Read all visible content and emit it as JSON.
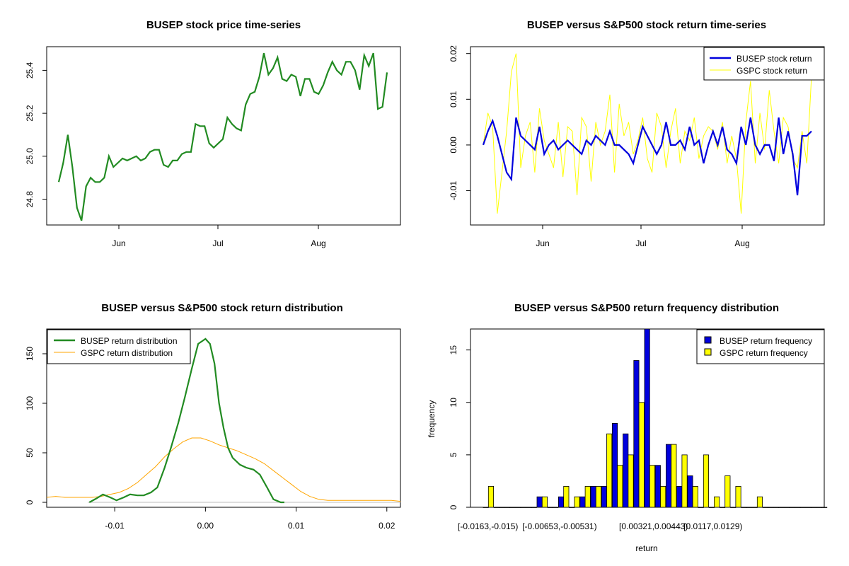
{
  "colors": {
    "busep": "#0000dd",
    "gspc": "#ffff00",
    "price": "#228b22",
    "density_busep": "#228b22",
    "density_gspc": "#ffa500"
  },
  "chart_data": [
    {
      "id": "price",
      "type": "line",
      "title": "BUSEP stock price time-series",
      "xlabel": "",
      "ylabel": "",
      "x_tick_labels": [
        "Jun",
        "Jul",
        "Aug"
      ],
      "y_tick_labels": [
        "24.8",
        "25.0",
        "25.2",
        "25.4"
      ],
      "ylim": [
        24.68,
        25.51
      ],
      "series": [
        {
          "x": [
            "May 13",
            "May 14",
            "May 15",
            "May 17",
            "May 20",
            "May 21",
            "May 22",
            "May 23",
            "May 24",
            "May 27",
            "May 28",
            "May 29",
            "May 30",
            "May 31",
            "Jun 3",
            "Jun 4",
            "Jun 5",
            "Jun 6",
            "Jun 7",
            "Jun 10",
            "Jun 11",
            "Jun 12",
            "Jun 13",
            "Jun 14",
            "Jun 17",
            "Jun 18",
            "Jun 19",
            "Jun 20",
            "Jun 21",
            "Jun 24",
            "Jun 25",
            "Jun 26",
            "Jun 27",
            "Jun 28",
            "Jul 1",
            "Jul 2",
            "Jul 3",
            "Jul 5",
            "Jul 8",
            "Jul 9",
            "Jul 10",
            "Jul 11",
            "Jul 12",
            "Jul 15",
            "Jul 16",
            "Jul 17",
            "Jul 18",
            "Jul 19",
            "Jul 22",
            "Jul 23",
            "Jul 24",
            "Jul 25",
            "Jul 26",
            "Jul 29",
            "Jul 30",
            "Jul 31",
            "Aug 1",
            "Aug 2",
            "Aug 5",
            "Aug 6",
            "Aug 7",
            "Aug 8",
            "Aug 9",
            "Aug 12",
            "Aug 13",
            "Aug 14",
            "Aug 15",
            "Aug 16",
            "Aug 19",
            "Aug 20",
            "Aug 21",
            "Aug 22",
            "Aug 23"
          ],
          "values": [
            24.88,
            24.97,
            25.1,
            24.95,
            24.76,
            24.7,
            24.86,
            24.9,
            24.88,
            24.88,
            24.9,
            25.0,
            24.95,
            24.97,
            24.99,
            24.98,
            24.99,
            25.0,
            24.98,
            24.99,
            25.02,
            25.03,
            25.03,
            24.96,
            24.95,
            24.98,
            24.98,
            25.01,
            25.02,
            25.02,
            25.15,
            25.14,
            25.14,
            25.06,
            25.04,
            25.06,
            25.08,
            25.18,
            25.15,
            25.13,
            25.12,
            25.24,
            25.29,
            25.3,
            25.37,
            25.48,
            25.38,
            25.41,
            25.46,
            25.36,
            25.35,
            25.38,
            25.37,
            25.28,
            25.36,
            25.36,
            25.3,
            25.29,
            25.33,
            25.39,
            25.44,
            25.4,
            25.38,
            25.44,
            25.44,
            25.4,
            25.31,
            25.47,
            25.42,
            25.48,
            25.22,
            25.23,
            25.39
          ]
        }
      ]
    },
    {
      "id": "returns",
      "type": "line",
      "title": "BUSEP versus S&P500 stock return time-series",
      "x_tick_labels": [
        "Jun",
        "Jul",
        "Aug"
      ],
      "y_tick_labels": [
        "-0.01",
        "0.00",
        "0.01",
        "0.02"
      ],
      "ylim": [
        -0.0175,
        0.0215
      ],
      "legend_position": "top-right",
      "series": [
        {
          "name": "BUSEP stock return",
          "values": [
            0.0,
            0.003,
            0.0053,
            0.002,
            -0.002,
            -0.006,
            -0.0075,
            0.006,
            0.002,
            0.001,
            0.0,
            -0.001,
            0.004,
            -0.002,
            0.0,
            0.001,
            -0.001,
            0.0,
            0.001,
            0.0,
            -0.001,
            -0.002,
            0.001,
            0.0,
            0.002,
            0.001,
            0.0,
            0.003,
            0.0,
            0.0,
            -0.001,
            -0.002,
            -0.004,
            0.0,
            0.004,
            0.002,
            0.0,
            -0.002,
            0.0,
            0.005,
            0.0,
            0.0,
            0.001,
            -0.001,
            0.004,
            0.0,
            0.001,
            -0.004,
            0.0,
            0.003,
            0.0,
            0.004,
            -0.001,
            -0.002,
            -0.004,
            0.004,
            0.0,
            0.006,
            0.0,
            -0.002,
            0.0,
            0.0,
            -0.0035,
            0.006,
            -0.002,
            0.003,
            -0.002,
            -0.011,
            0.002,
            0.002,
            0.003
          ]
        },
        {
          "name": "GSPC stock return",
          "values": [
            0.0,
            0.007,
            0.004,
            -0.015,
            -0.006,
            0.003,
            0.016,
            0.02,
            -0.005,
            0.002,
            0.005,
            -0.006,
            0.008,
            0.001,
            -0.002,
            -0.005,
            0.005,
            -0.007,
            0.004,
            0.003,
            -0.011,
            0.006,
            0.004,
            -0.008,
            0.005,
            0.0,
            0.003,
            0.011,
            -0.006,
            0.009,
            0.002,
            0.005,
            -0.002,
            0.001,
            0.006,
            -0.003,
            -0.006,
            0.007,
            0.004,
            -0.005,
            0.003,
            0.008,
            -0.004,
            0.003,
            0.001,
            0.006,
            -0.003,
            0.002,
            0.004,
            0.003,
            -0.001,
            0.005,
            -0.004,
            0.002,
            -0.003,
            -0.015,
            0.005,
            0.014,
            -0.004,
            0.007,
            -0.001,
            0.012,
            0.003,
            -0.004,
            0.006,
            0.004,
            -0.003,
            -0.005,
            0.003,
            -0.004,
            0.015
          ]
        }
      ]
    },
    {
      "id": "density",
      "type": "line",
      "title": "BUSEP versus S&P500 stock return distribution",
      "x_tick_labels": [
        "-0.01",
        "0.00",
        "0.01",
        "0.02"
      ],
      "y_tick_labels": [
        "0",
        "50",
        "100",
        "150"
      ],
      "xlim": [
        -0.0175,
        0.0215
      ],
      "ylim": [
        -5,
        175
      ],
      "legend_position": "top-left",
      "series": [
        {
          "name": "BUSEP return distribution",
          "x": [
            -0.0128,
            -0.012,
            -0.0113,
            -0.0105,
            -0.0098,
            -0.009,
            -0.0083,
            -0.0075,
            -0.0068,
            -0.006,
            -0.0053,
            -0.0045,
            -0.0038,
            -0.003,
            -0.0023,
            -0.0015,
            -0.0008,
            0.0,
            0.0005,
            0.001,
            0.0015,
            0.002,
            0.0025,
            0.003,
            0.0038,
            0.0045,
            0.0053,
            0.006,
            0.0068,
            0.0075,
            0.0083,
            0.0087
          ],
          "values": [
            0,
            4,
            8,
            5,
            2,
            5,
            8,
            7,
            7,
            10,
            15,
            35,
            55,
            80,
            105,
            135,
            160,
            165,
            160,
            140,
            100,
            75,
            55,
            45,
            38,
            35,
            33,
            28,
            15,
            3,
            0,
            0
          ]
        },
        {
          "name": "GSPC return distribution",
          "x": [
            -0.0175,
            -0.0165,
            -0.0155,
            -0.0145,
            -0.0135,
            -0.0125,
            -0.0115,
            -0.0105,
            -0.0095,
            -0.0085,
            -0.0075,
            -0.0065,
            -0.0055,
            -0.0045,
            -0.0035,
            -0.0025,
            -0.0015,
            -0.0005,
            0.0005,
            0.0015,
            0.0025,
            0.0035,
            0.0045,
            0.0055,
            0.0065,
            0.0075,
            0.0085,
            0.0095,
            0.0105,
            0.0115,
            0.0125,
            0.0135,
            0.0145,
            0.0155,
            0.0165,
            0.0175,
            0.0185,
            0.0195,
            0.0205,
            0.0215
          ],
          "values": [
            5,
            6,
            5,
            5,
            5,
            5,
            6,
            8,
            10,
            14,
            20,
            28,
            36,
            46,
            54,
            61,
            65,
            65,
            62,
            58,
            55,
            52,
            48,
            44,
            39,
            32,
            25,
            18,
            11,
            6,
            3,
            2,
            2,
            2,
            2,
            2,
            2,
            2,
            2,
            1
          ]
        }
      ]
    },
    {
      "id": "frequency",
      "type": "bar",
      "title": "BUSEP versus S&P500 return frequency distribution",
      "xlabel": "return",
      "ylabel": "frequency",
      "x_tick_labels": [
        "[-0.0163,-0.015)",
        "[-0.00653,-0.00531)",
        "[0.00321,0.00443)",
        "[0.0117,0.0129)"
      ],
      "y_tick_labels": [
        "0",
        "5",
        "10",
        "15"
      ],
      "ylim": [
        0,
        17
      ],
      "legend_position": "top-right",
      "series": [
        {
          "name": "BUSEP return frequency",
          "values": [
            0,
            0,
            0,
            0,
            0,
            1,
            0,
            1,
            0,
            1,
            2,
            2,
            8,
            7,
            14,
            17,
            4,
            6,
            2,
            3,
            0,
            0,
            0,
            0,
            0,
            0,
            0,
            0,
            0,
            0,
            0,
            0
          ]
        },
        {
          "name": "GSPC return frequency",
          "values": [
            2,
            0,
            0,
            0,
            0,
            1,
            0,
            2,
            1,
            2,
            2,
            7,
            4,
            5,
            10,
            4,
            2,
            6,
            5,
            2,
            5,
            1,
            3,
            2,
            0,
            1,
            0,
            0,
            0,
            0,
            0,
            0
          ]
        }
      ]
    }
  ]
}
